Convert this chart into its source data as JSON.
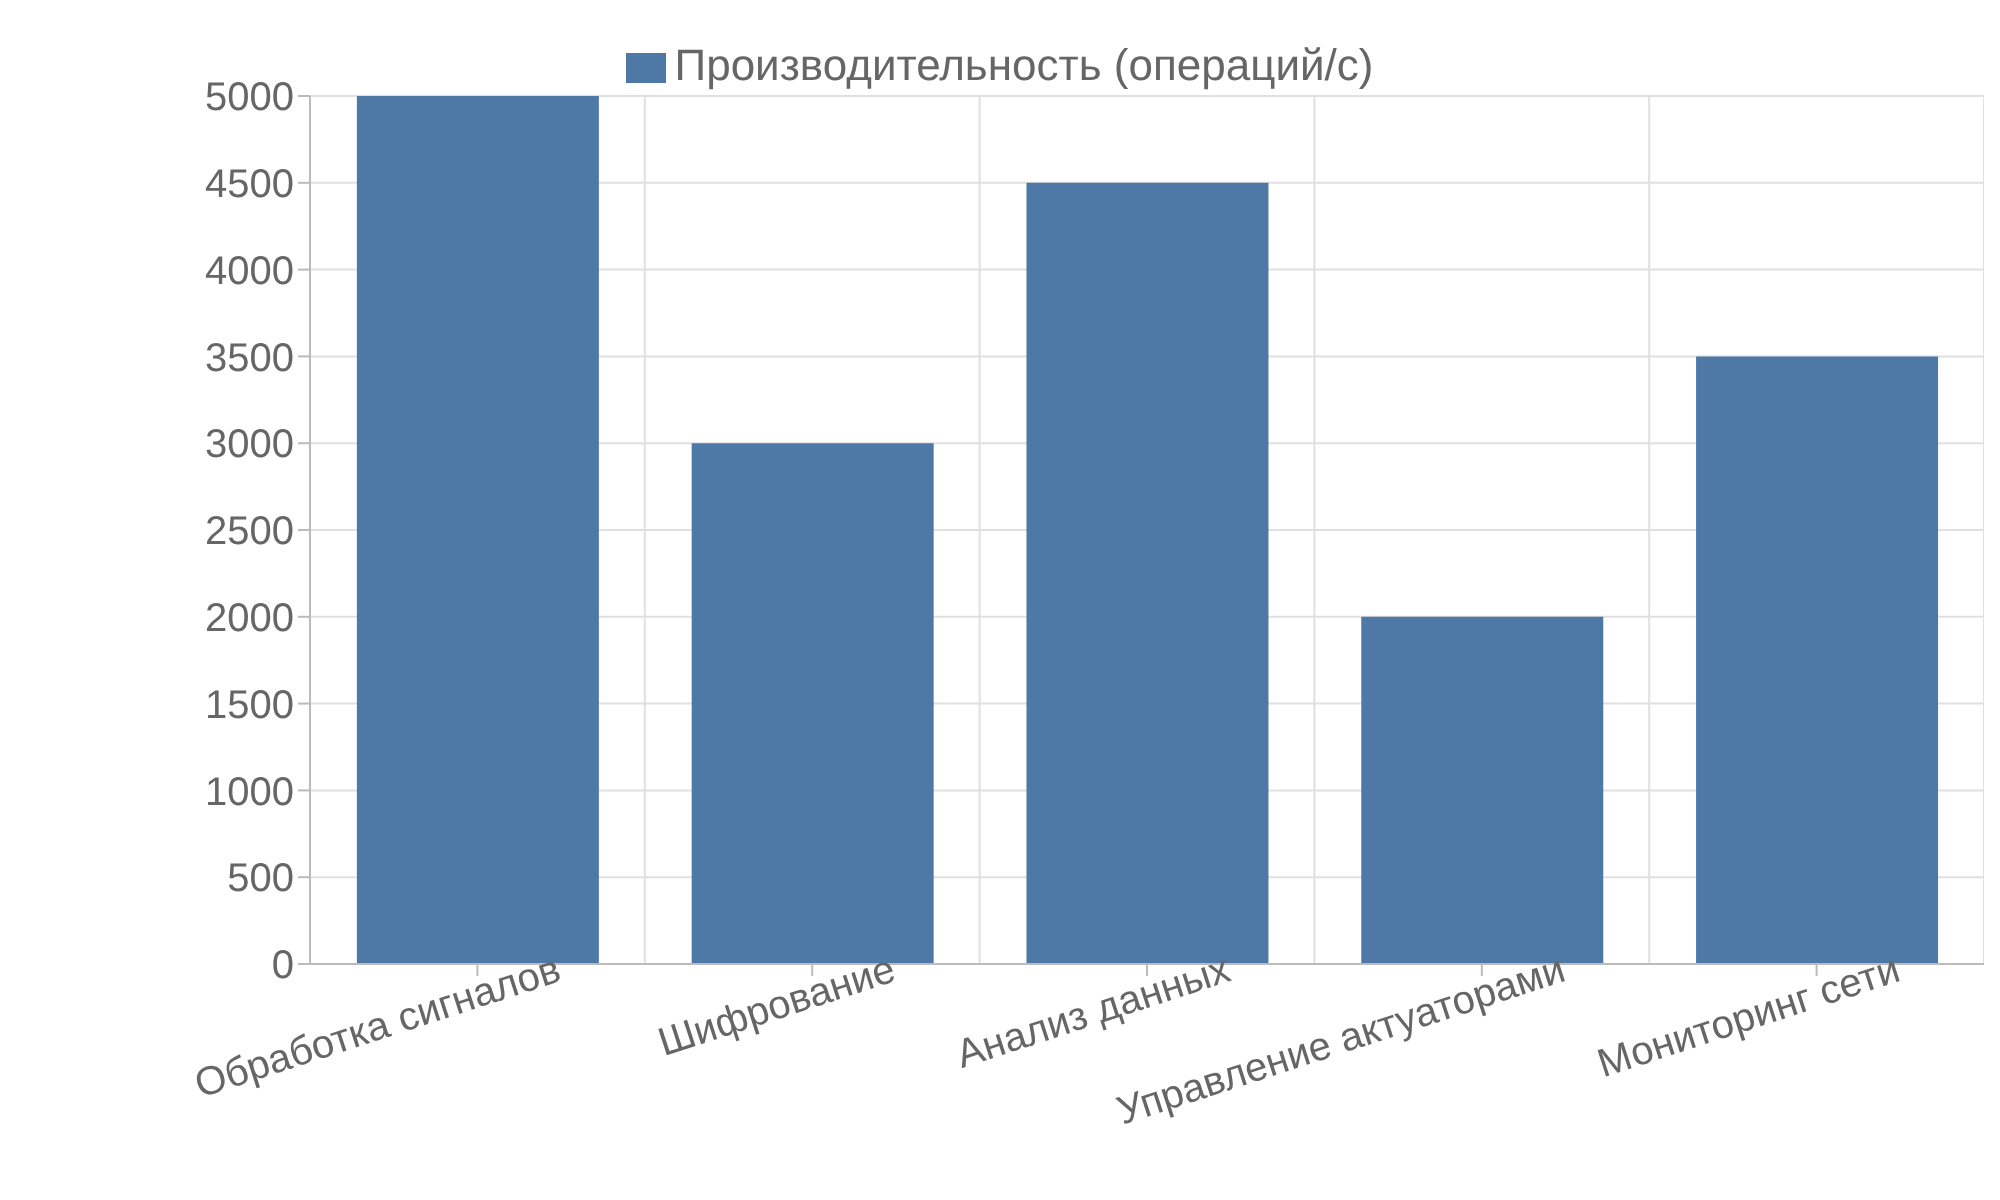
{
  "chart_data": {
    "type": "bar",
    "categories": [
      "Обработка сигналов",
      "Шифрование",
      "Анализ данных",
      "Управление актуаторами",
      "Мониторинг сети"
    ],
    "series": [
      {
        "name": "Производительность (операций/с)",
        "color": "#4e79a7",
        "values": [
          5000,
          3000,
          4500,
          2000,
          3500
        ]
      }
    ],
    "ylim": [
      0,
      5000
    ],
    "yticks": [
      0,
      500,
      1000,
      1500,
      2000,
      2500,
      3000,
      3500,
      4000,
      4500,
      5000
    ],
    "grid": true,
    "legend": "top"
  }
}
